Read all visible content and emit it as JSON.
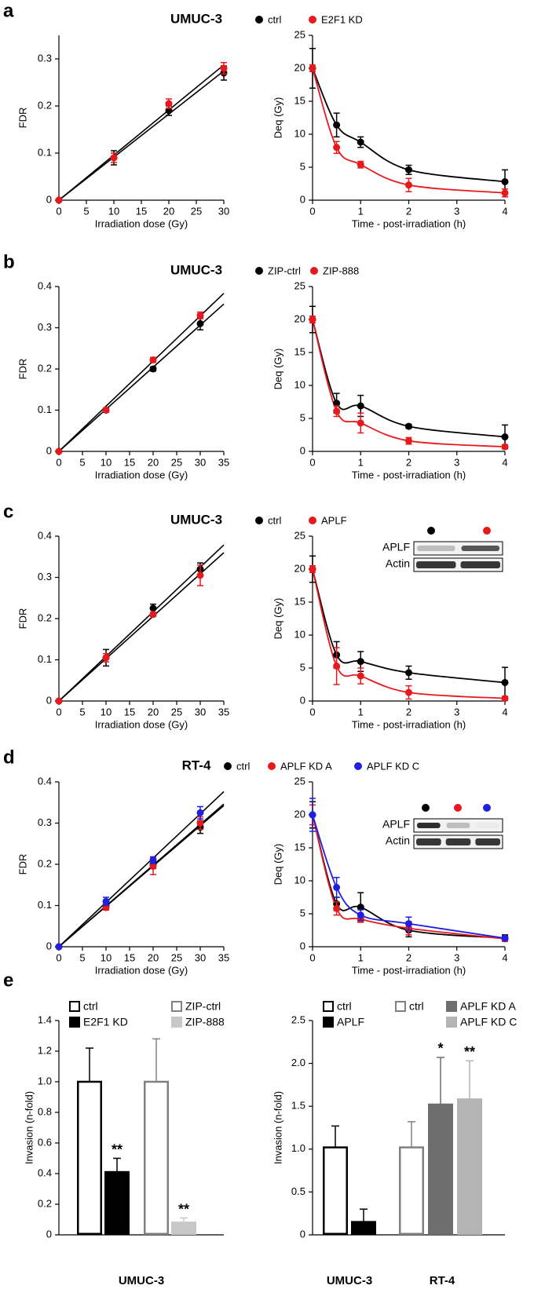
{
  "chart_data": [
    {
      "type": "scatter",
      "panel_label": "a",
      "title": "UMUC-3",
      "xlabel": "Irradiation dose (Gy)",
      "ylabel": "FDR",
      "x": [
        0,
        10,
        20,
        30
      ],
      "xlim": [
        0,
        30
      ],
      "xticks": [
        0,
        5,
        10,
        15,
        20,
        25,
        30
      ],
      "ylim": [
        0,
        0.35
      ],
      "yticks": [
        0,
        0.1,
        0.2,
        0.3
      ],
      "fit": "linear",
      "series": [
        {
          "name": "ctrl",
          "color": "#000000",
          "values": [
            0,
            0.09,
            0.19,
            0.27
          ],
          "error": [
            0,
            0.015,
            0.01,
            0.015
          ]
        },
        {
          "name": "E2F1 KD",
          "color": "#e8191c",
          "values": [
            0,
            0.09,
            0.205,
            0.28
          ],
          "error": [
            0,
            0.01,
            0.01,
            0.012
          ]
        }
      ]
    },
    {
      "type": "line",
      "smooth": true,
      "xlabel": "Time - post-irradiation (h)",
      "ylabel": "Deq (Gy)",
      "x": [
        0,
        0.5,
        1,
        2,
        4
      ],
      "xlim": [
        0,
        4
      ],
      "xticks": [
        0,
        1,
        2,
        3,
        4
      ],
      "ylim": [
        0,
        25
      ],
      "yticks": [
        0,
        5,
        10,
        15,
        20,
        25
      ],
      "legend": true,
      "series": [
        {
          "name": "ctrl",
          "color": "#000000",
          "values": [
            20,
            11.4,
            8.8,
            4.6,
            2.8
          ],
          "error": [
            3,
            1.8,
            0.8,
            0.7,
            1.8
          ]
        },
        {
          "name": "E2F1 KD",
          "color": "#e8191c",
          "values": [
            20,
            8,
            5.4,
            2.3,
            1.1
          ],
          "error": [
            0.5,
            0.9,
            0.5,
            1,
            0.6
          ]
        }
      ]
    },
    {
      "type": "scatter",
      "panel_label": "b",
      "title": "UMUC-3",
      "xlabel": "Irradiation dose (Gy)",
      "ylabel": "FDR",
      "x": [
        0,
        10,
        20,
        30
      ],
      "xlim": [
        0,
        35
      ],
      "xticks": [
        0,
        5,
        10,
        15,
        20,
        25,
        30,
        35
      ],
      "ylim": [
        0,
        0.4
      ],
      "yticks": [
        0,
        0.1,
        0.2,
        0.3,
        0.4
      ],
      "fit": "linear",
      "series": [
        {
          "name": "ZIP-ctrl",
          "color": "#000000",
          "values": [
            0,
            0.1,
            0.2,
            0.31
          ],
          "error": [
            0,
            0.005,
            0.005,
            0.015
          ]
        },
        {
          "name": "ZIP-888",
          "color": "#e8191c",
          "values": [
            0,
            0.1,
            0.222,
            0.33
          ],
          "error": [
            0,
            0.004,
            0.006,
            0.008
          ]
        }
      ]
    },
    {
      "type": "line",
      "smooth": true,
      "xlabel": "Time - post-irradiation (h)",
      "ylabel": "Deq (Gy)",
      "x": [
        0,
        0.5,
        1,
        2,
        4
      ],
      "xlim": [
        0,
        4
      ],
      "xticks": [
        0,
        1,
        2,
        3,
        4
      ],
      "ylim": [
        0,
        25
      ],
      "yticks": [
        0,
        5,
        10,
        15,
        20,
        25
      ],
      "legend": true,
      "series": [
        {
          "name": "ZIP-ctrl",
          "color": "#000000",
          "values": [
            20,
            7.3,
            6.9,
            3.8,
            2.2
          ],
          "error": [
            2,
            1.5,
            1.6,
            0.3,
            1.8
          ]
        },
        {
          "name": "ZIP-888",
          "color": "#e8191c",
          "values": [
            20,
            6.1,
            4.3,
            1.6,
            0.7
          ],
          "error": [
            0.5,
            0.8,
            1.5,
            0.5,
            0.3
          ]
        }
      ]
    },
    {
      "type": "scatter",
      "panel_label": "c",
      "title": "UMUC-3",
      "xlabel": "Irradiation dose (Gy)",
      "ylabel": "FDR",
      "x": [
        0,
        10,
        20,
        30
      ],
      "xlim": [
        0,
        35
      ],
      "xticks": [
        0,
        5,
        10,
        15,
        20,
        25,
        30,
        35
      ],
      "ylim": [
        0,
        0.4
      ],
      "yticks": [
        0,
        0.1,
        0.2,
        0.3,
        0.4
      ],
      "fit": "linear",
      "series": [
        {
          "name": "ctrl",
          "color": "#000000",
          "values": [
            0,
            0.105,
            0.225,
            0.32
          ],
          "error": [
            0,
            0.02,
            0.01,
            0.015
          ]
        },
        {
          "name": "APLF",
          "color": "#e8191c",
          "values": [
            0,
            0.105,
            0.21,
            0.305
          ],
          "error": [
            0,
            0.01,
            0.005,
            0.025
          ]
        }
      ]
    },
    {
      "type": "line",
      "smooth": true,
      "xlabel": "Time - post-irradiation (h)",
      "ylabel": "Deq (Gy)",
      "x": [
        0,
        0.5,
        1,
        2,
        4
      ],
      "xlim": [
        0,
        4
      ],
      "xticks": [
        0,
        1,
        2,
        3,
        4
      ],
      "ylim": [
        0,
        25
      ],
      "yticks": [
        0,
        5,
        10,
        15,
        20,
        25
      ],
      "legend": true,
      "inset_labels": [
        "APLF",
        "Actin"
      ],
      "series": [
        {
          "name": "ctrl",
          "color": "#000000",
          "values": [
            20,
            7,
            6,
            4.3,
            2.8
          ],
          "error": [
            2,
            2,
            1.5,
            1,
            2.3
          ]
        },
        {
          "name": "APLF",
          "color": "#e8191c",
          "values": [
            20,
            5.3,
            3.8,
            1.3,
            0.4
          ],
          "error": [
            0.5,
            2.8,
            1.2,
            1,
            0.3
          ]
        }
      ]
    },
    {
      "type": "scatter",
      "panel_label": "d",
      "title": "RT-4",
      "xlabel": "Irradiation dose (Gy)",
      "ylabel": "FDR",
      "x": [
        0,
        10,
        20,
        30
      ],
      "xlim": [
        0,
        35
      ],
      "xticks": [
        0,
        5,
        10,
        15,
        20,
        25,
        30,
        35
      ],
      "ylim": [
        0,
        0.4
      ],
      "yticks": [
        0,
        0.1,
        0.2,
        0.3,
        0.4
      ],
      "fit": "linear",
      "series": [
        {
          "name": "ctrl",
          "color": "#000000",
          "values": [
            0,
            0.1,
            0.2,
            0.29
          ],
          "error": [
            0,
            0.008,
            0.01,
            0.015
          ]
        },
        {
          "name": "APLF KD A",
          "color": "#e8191c",
          "values": [
            0,
            0.095,
            0.195,
            0.3
          ],
          "error": [
            0,
            0.006,
            0.02,
            0.015
          ]
        },
        {
          "name": "APLF KD C",
          "color": "#1f1fe0",
          "values": [
            0,
            0.11,
            0.21,
            0.325
          ],
          "error": [
            0,
            0.01,
            0.008,
            0.015
          ]
        }
      ]
    },
    {
      "type": "line",
      "smooth": true,
      "xlabel": "Time - post-irradiation (h)",
      "ylabel": "Deq (Gy)",
      "x": [
        0,
        0.5,
        1,
        2,
        4
      ],
      "xlim": [
        0,
        4
      ],
      "xticks": [
        0,
        1,
        2,
        3,
        4
      ],
      "ylim": [
        0,
        25
      ],
      "yticks": [
        0,
        5,
        10,
        15,
        20,
        25
      ],
      "legend": true,
      "inset_labels": [
        "APLF",
        "Actin"
      ],
      "series": [
        {
          "name": "ctrl",
          "color": "#000000",
          "values": [
            20,
            6.5,
            6,
            2.5,
            1.3
          ],
          "error": [
            2,
            1,
            2.2,
            1,
            0.5
          ]
        },
        {
          "name": "APLF KD A",
          "color": "#e8191c",
          "values": [
            20,
            5.8,
            4.2,
            2.8,
            1.2
          ],
          "error": [
            1.5,
            1,
            0.5,
            1,
            0.4
          ]
        },
        {
          "name": "APLF KD C",
          "color": "#1f1fe0",
          "values": [
            20,
            9,
            4.8,
            3.5,
            1.3
          ],
          "error": [
            2.5,
            1.5,
            0.8,
            1,
            0.3
          ]
        }
      ]
    },
    {
      "type": "bar",
      "panel_label": "e",
      "ylabel": "Invasion (n-fold)",
      "ylim": [
        0,
        1.4
      ],
      "yticks": [
        0,
        0.2,
        0.4,
        0.6,
        0.8,
        {
          "value": 1,
          "label": "1.0"
        },
        1.2,
        1.4
      ],
      "groups": [
        {
          "label": "UMUC-3",
          "series": [
            {
              "name": "ctrl",
              "color": "#ffffff",
              "edge": "#000000",
              "value": 1.0,
              "error": 0.22
            },
            {
              "name": "E2F1 KD",
              "color": "#000000",
              "edge": "#000000",
              "value": 0.41,
              "error": 0.09,
              "annotation": "**"
            },
            {
              "name": "ZIP-ctrl",
              "color": "#ffffff",
              "edge": "#808080",
              "value": 1.0,
              "error": 0.28
            },
            {
              "name": "ZIP-888",
              "color": "#c8c8c8",
              "edge": "#c8c8c8",
              "value": 0.08,
              "error": 0.03,
              "annotation": "**"
            }
          ]
        }
      ]
    },
    {
      "type": "bar",
      "ylabel": "Invasion (n-fold)",
      "ylim": [
        0,
        2.5
      ],
      "yticks": [
        0,
        0.5,
        {
          "value": 1,
          "label": "1.0"
        },
        1.5,
        {
          "value": 2,
          "label": "2.0"
        },
        2.5
      ],
      "groups": [
        {
          "label": "UMUC-3",
          "series": [
            {
              "name": "ctrl",
              "color": "#ffffff",
              "edge": "#000000",
              "value": 1.02,
              "error": 0.25
            },
            {
              "name": "APLF",
              "color": "#000000",
              "edge": "#000000",
              "value": 0.15,
              "error": 0.15
            }
          ]
        },
        {
          "label": "RT-4",
          "series": [
            {
              "name": "ctrl",
              "color": "#ffffff",
              "edge": "#808080",
              "value": 1.02,
              "error": 0.3
            },
            {
              "name": "APLF KD A",
              "color": "#6e6e6e",
              "edge": "#6e6e6e",
              "value": 1.52,
              "error": 0.55,
              "annotation": "*"
            },
            {
              "name": "APLF KD C",
              "color": "#b4b4b4",
              "edge": "#b4b4b4",
              "value": 1.58,
              "error": 0.45,
              "annotation": "**"
            }
          ]
        }
      ]
    }
  ]
}
